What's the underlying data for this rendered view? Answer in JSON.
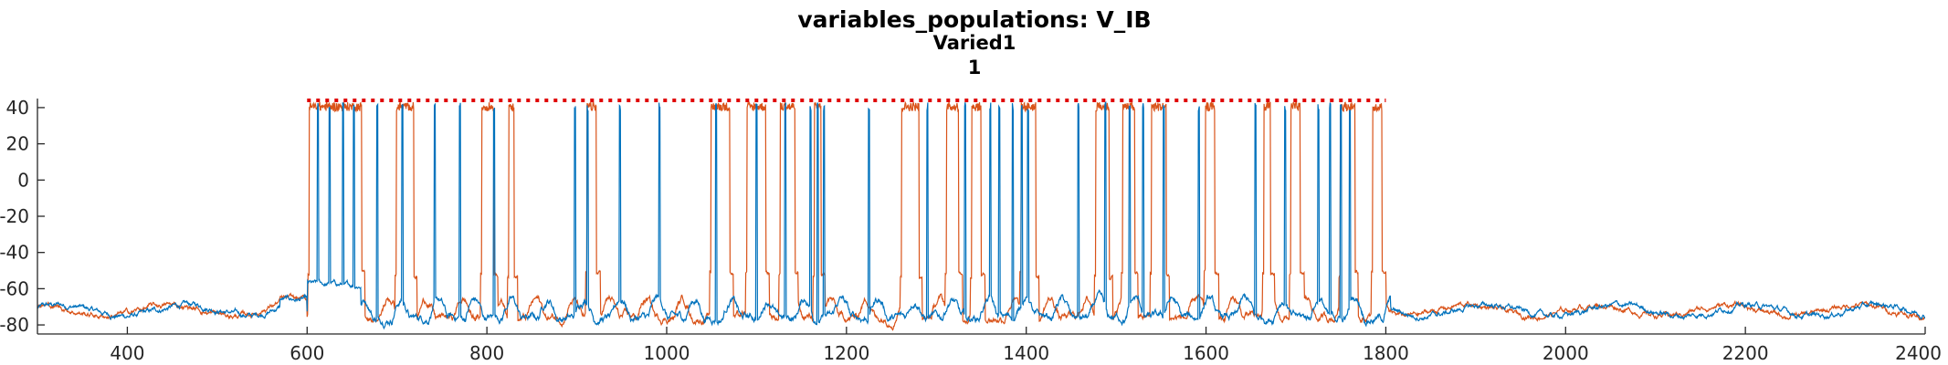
{
  "chart_data": {
    "type": "line",
    "title": "variables_populations: V_IB",
    "subtitle": "Varied1",
    "subtitle2": "1",
    "xlabel": "",
    "ylabel": "",
    "xlim": [
      300,
      2400
    ],
    "ylim": [
      -85,
      45
    ],
    "xticks": [
      400,
      600,
      800,
      1000,
      1200,
      1400,
      1600,
      1800,
      2000,
      2200,
      2400
    ],
    "yticks": [
      -80,
      -60,
      -40,
      -20,
      0,
      20,
      40
    ],
    "grid": false,
    "legend": "none",
    "colors": {
      "blue": "#0072BD",
      "orange": "#D95319",
      "threshold": "#E00000"
    },
    "threshold_line": {
      "y": 44,
      "x_start": 600,
      "x_end": 1800,
      "style": "dotted"
    },
    "stimulus_window": [
      600,
      1800
    ],
    "baseline_mV": -72,
    "series": [
      {
        "color": "#0072BD",
        "spike_times": [
          612,
          625,
          640,
          652,
          678,
          706,
          742,
          770,
          808,
          898,
          912,
          948,
          992,
          1055,
          1100,
          1132,
          1160,
          1168,
          1175,
          1225,
          1290,
          1332,
          1360,
          1370,
          1385,
          1395,
          1402,
          1458,
          1488,
          1515,
          1530,
          1553,
          1592,
          1655,
          1688,
          1725,
          1738,
          1750,
          1760
        ]
      },
      {
        "color": "#D95319",
        "bursts": [
          [
            603,
            660
          ],
          [
            700,
            718
          ],
          [
            795,
            808
          ],
          [
            825,
            830
          ],
          [
            912,
            922
          ],
          [
            1050,
            1070
          ],
          [
            1090,
            1110
          ],
          [
            1127,
            1142
          ],
          [
            1165,
            1172
          ],
          [
            1262,
            1280
          ],
          [
            1312,
            1325
          ],
          [
            1340,
            1350
          ],
          [
            1395,
            1410
          ],
          [
            1478,
            1492
          ],
          [
            1508,
            1520
          ],
          [
            1540,
            1555
          ],
          [
            1600,
            1610
          ],
          [
            1665,
            1672
          ],
          [
            1695,
            1705
          ],
          [
            1750,
            1765
          ],
          [
            1786,
            1796
          ]
        ]
      }
    ]
  }
}
